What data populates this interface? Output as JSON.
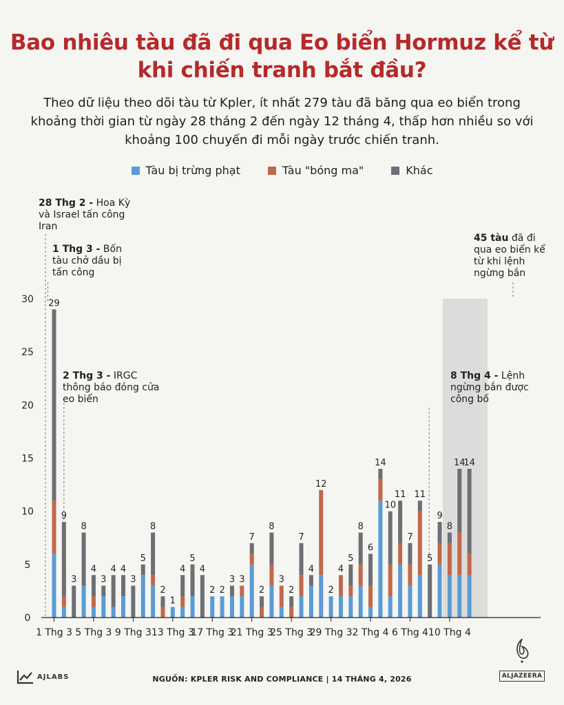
{
  "title": "Bao nhiêu tàu đã đi qua Eo biển Hormuz kể từ khi chiến tranh bắt đầu?",
  "subtitle": "Theo dữ liệu theo dõi tàu từ Kpler, ít nhất 279 tàu đã băng qua eo biển trong khoảng thời gian từ ngày 28 tháng 2 đến ngày 12 tháng 4, thấp hơn nhiều so với khoảng 100 chuyến đi mỗi ngày trước chiến tranh.",
  "legend": [
    {
      "label": "Tàu bị trừng phạt",
      "color": "#5b9bd5"
    },
    {
      "label": "Tàu \"bóng ma\"",
      "color": "#c0694a"
    },
    {
      "label": "Khác",
      "color": "#6e6f75"
    }
  ],
  "annotations": {
    "a1": {
      "bold": "28 Thg 2 -",
      "text": " Hoa Kỳ và Israel tấn công Iran"
    },
    "a2": {
      "bold": "1 Thg 3 -",
      "text": " Bốn tàu chở dầu bị tấn công"
    },
    "a3": {
      "bold": "2 Thg 3 -",
      "text": " IRGC thông báo đóng cửa eo biển"
    },
    "a4": {
      "bold": "8 Thg 4 -",
      "text": " Lệnh ngừng bắn được công bố"
    },
    "a5": {
      "bold": "45 tàu",
      "text": " đã đi qua eo biển kể từ khi lệnh ngừng bắn"
    }
  },
  "footer": "NGUỒN: KPLER RISK AND COMPLIANCE   |   14 THÁNG 4, 2026",
  "brand_left": "AJLABS",
  "brand_right": "ALJAZEERA",
  "chart_data": {
    "type": "bar",
    "stacked": true,
    "ylim": [
      0,
      30
    ],
    "yticks": [
      0,
      5,
      10,
      15,
      20,
      25,
      30
    ],
    "xtick_labels": [
      "1 Thg 3",
      "5 Thg 3",
      "9 Thg 3",
      "13 Thg 3",
      "17 Thg 3",
      "21 Thg 3",
      "25 Thg 3",
      "29 Thg 3",
      "2 Thg 4",
      "6 Thg 4",
      "10 Thg 4"
    ],
    "xtick_indices": [
      0,
      4,
      8,
      12,
      16,
      20,
      24,
      28,
      32,
      36,
      40
    ],
    "highlight_range": [
      40,
      44
    ],
    "series_colors": [
      "#5b9bd5",
      "#c0694a",
      "#6e6f75"
    ],
    "days": [
      [
        6,
        5,
        18
      ],
      [
        1,
        1,
        7
      ],
      [
        0,
        0,
        3
      ],
      [
        3,
        0,
        5
      ],
      [
        1,
        1,
        2
      ],
      [
        2,
        0,
        1
      ],
      [
        1,
        0,
        3
      ],
      [
        2,
        0,
        2
      ],
      [
        0,
        0,
        3
      ],
      [
        4,
        0,
        1
      ],
      [
        3,
        1,
        4
      ],
      [
        0,
        1,
        1
      ],
      [
        1,
        0,
        0
      ],
      [
        1,
        1,
        2
      ],
      [
        2,
        0,
        3
      ],
      [
        0,
        0,
        4
      ],
      [
        2,
        0,
        0
      ],
      [
        2,
        0,
        0
      ],
      [
        2,
        0,
        1
      ],
      [
        2,
        1,
        0
      ],
      [
        5,
        1,
        1
      ],
      [
        0,
        1,
        1
      ],
      [
        3,
        2,
        3
      ],
      [
        1,
        2,
        0
      ],
      [
        0,
        1,
        1
      ],
      [
        2,
        2,
        3
      ],
      [
        3,
        0,
        1
      ],
      [
        4,
        8,
        0
      ],
      [
        2,
        0,
        0
      ],
      [
        2,
        2,
        0
      ],
      [
        2,
        1,
        2
      ],
      [
        3,
        2,
        3
      ],
      [
        1,
        2,
        3
      ],
      [
        11,
        2,
        1
      ],
      [
        2,
        3,
        5
      ],
      [
        5,
        2,
        4
      ],
      [
        3,
        2,
        2
      ],
      [
        4,
        6,
        1
      ],
      [
        0,
        0,
        5
      ],
      [
        5,
        2,
        2
      ],
      [
        4,
        3,
        1
      ],
      [
        4,
        4,
        6
      ],
      [
        4,
        2,
        8
      ]
    ],
    "totals": [
      29,
      9,
      3,
      8,
      4,
      3,
      4,
      4,
      3,
      5,
      8,
      2,
      1,
      4,
      5,
      4,
      2,
      2,
      3,
      3,
      7,
      2,
      8,
      3,
      2,
      7,
      4,
      12,
      2,
      4,
      5,
      8,
      6,
      14,
      10,
      11,
      7,
      11,
      5,
      9,
      8,
      14,
      14
    ]
  }
}
